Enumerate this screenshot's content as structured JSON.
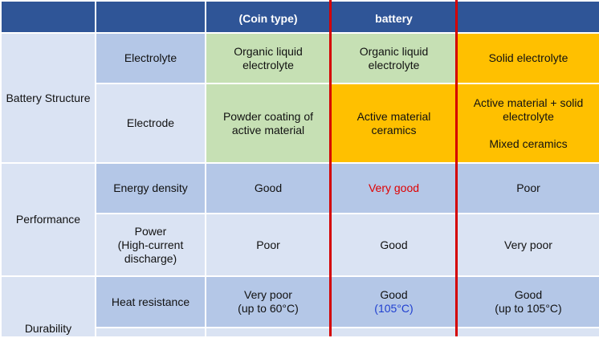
{
  "header": {
    "col3": "(Coin type)",
    "col4": "battery",
    "col5": ""
  },
  "sections": {
    "structure": "Battery Structure",
    "performance": "Performance",
    "durability": "Durability"
  },
  "rows": {
    "electrolyte": {
      "label": "Electrolyte",
      "coin": "Organic liquid electrolyte",
      "middle": "Organic liquid electrolyte",
      "right": "Solid electrolyte"
    },
    "electrode": {
      "label": "Electrode",
      "coin": "Powder coating of active material",
      "middle": "Active material ceramics",
      "right_line1": "Active material + solid electrolyte",
      "right_line2": "Mixed ceramics"
    },
    "energy": {
      "label": "Energy density",
      "coin": "Good",
      "middle": "Very good",
      "right": "Poor"
    },
    "power": {
      "label_line1": "Power",
      "label_line2": "(High-current discharge)",
      "coin": "Poor",
      "middle": "Good",
      "right": "Very poor"
    },
    "heat": {
      "label": "Heat resistance",
      "coin_line1": "Very poor",
      "coin_line2": "(up to 60°C)",
      "middle_line1": "Good",
      "middle_line2": "(105°C)",
      "right_line1": "Good",
      "right_line2": "(up to 105°C)"
    }
  },
  "colors": {
    "header": "#2f5597",
    "row_dark": "#b4c7e7",
    "row_light": "#dae3f3",
    "green_cell": "#c6e0b4",
    "orange_cell": "#ffc000",
    "highlight_line": "#d40000",
    "red_text": "#e00000",
    "blue_text": "#1f3fd0"
  }
}
